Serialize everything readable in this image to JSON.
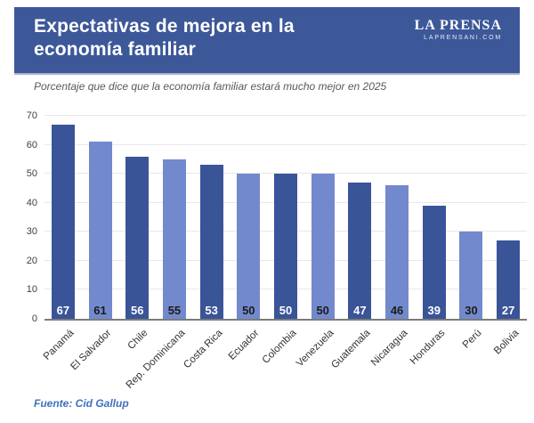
{
  "header": {
    "title": "Expectativas de mejora en la economía familiar",
    "logo_name": "LA PRENSA",
    "logo_domain": "LAPRENSANI.COM"
  },
  "subtitle": "Porcentaje que dice que la economía familiar estará mucho mejor en 2025",
  "source": "Fuente: Cid Gallup",
  "colors": {
    "banner": "#3D5899",
    "bar_dark": "#3A5498",
    "bar_light": "#7389CD",
    "value_label_on_dark": "#FFFFFF",
    "value_label_on_light": "#1B1B1B",
    "grid": "#E8E8E8",
    "axis_line": "#7B7B7B",
    "source_text": "#4070C0"
  },
  "chart_data": {
    "type": "bar",
    "categories": [
      "Panamá",
      "El Salvador",
      "Chile",
      "Rep. Dominicana",
      "Costa Rica",
      "Ecuador",
      "Colombia",
      "Venezuela",
      "Guatemala",
      "Nicaragua",
      "Honduras",
      "Perú",
      "Bolivia"
    ],
    "values": [
      67,
      61,
      56,
      55,
      53,
      50,
      50,
      50,
      47,
      46,
      39,
      30,
      27
    ],
    "title": "Expectativas de mejora en la economía familiar",
    "subtitle": "Porcentaje que dice que la economía familiar estará mucho mejor en 2025",
    "xlabel": "",
    "ylabel": "",
    "ylim": [
      0,
      70
    ],
    "yticks": [
      0,
      10,
      20,
      30,
      40,
      50,
      60,
      70
    ],
    "grid": true,
    "legend": false,
    "value_labels": "inside-base",
    "bar_color_pattern": [
      "dark",
      "light"
    ]
  }
}
